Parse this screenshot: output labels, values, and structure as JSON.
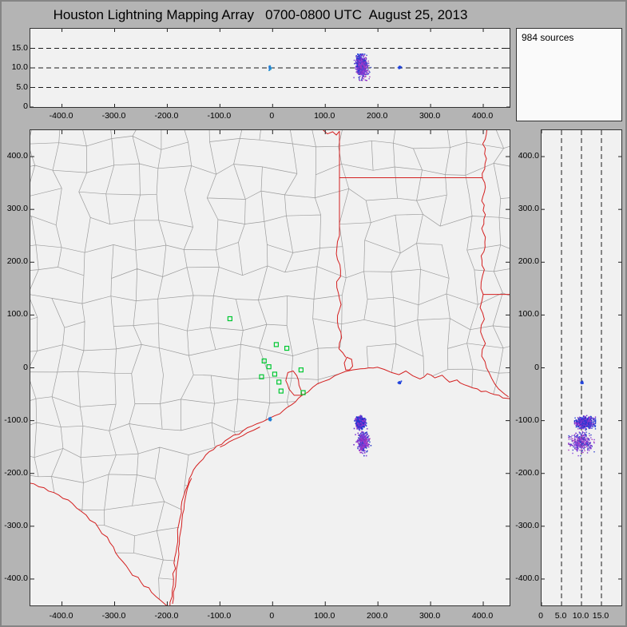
{
  "title": "Houston Lightning Mapping Array   0700-0800 UTC  August 25, 2013",
  "sources_label": "984 sources",
  "chart_data": {
    "type": "scatter",
    "title": "Houston Lightning Mapping Array   0700-0800 UTC  August 25, 2013",
    "total_sources": 984,
    "legend": "none",
    "grid": "dashed reference lines at 5, 10, 15 km altitude",
    "panels": {
      "top": {
        "x": "east-west distance km",
        "y": "altitude km",
        "x_range": [
          -460,
          450
        ],
        "y_range": [
          0,
          20
        ]
      },
      "map": {
        "x": "east-west distance km",
        "y": "north-south distance km",
        "x_range": [
          -460,
          450
        ],
        "y_range": [
          -450,
          450
        ]
      },
      "right": {
        "x": "altitude km",
        "y": "north-south distance km",
        "x_range": [
          0,
          20
        ],
        "y_range": [
          -450,
          450
        ]
      }
    },
    "axes": {
      "km_ticks": [
        {
          "v": -400,
          "label": "-400.0"
        },
        {
          "v": -300,
          "label": "-300.0"
        },
        {
          "v": -200,
          "label": "-200.0"
        },
        {
          "v": -100,
          "label": "-100.0"
        },
        {
          "v": 0,
          "label": "0"
        },
        {
          "v": 100,
          "label": "100.0"
        },
        {
          "v": 200,
          "label": "200.0"
        },
        {
          "v": 300,
          "label": "300.0"
        },
        {
          "v": 400,
          "label": "400.0"
        }
      ],
      "alt_ticks": [
        {
          "v": 0,
          "label": "0"
        },
        {
          "v": 5,
          "label": "5.0"
        },
        {
          "v": 10,
          "label": "10.0"
        },
        {
          "v": 15,
          "label": "15.0"
        }
      ],
      "dash_alts": [
        5,
        10,
        15
      ]
    },
    "clusters": [
      {
        "name": "flash-near-houston-coast",
        "count": 30,
        "cx": -5,
        "cy": -97,
        "sx": 1.5,
        "sy": 1.5,
        "zmin": 9.3,
        "zmax": 10.7,
        "colors": [
          "#22a0cc",
          "#2266dd"
        ]
      },
      {
        "name": "offshore-storm-main",
        "count": 600,
        "cx": 166,
        "cy": -104,
        "sx": 4,
        "sy": 5,
        "zmin": 8.3,
        "zmax": 13.5,
        "colors": [
          "#2233cc",
          "#2244dd",
          "#6633cc",
          "#9933cc"
        ]
      },
      {
        "name": "offshore-storm-south",
        "count": 330,
        "cx": 172,
        "cy": -141,
        "sx": 5,
        "sy": 9,
        "zmin": 6.8,
        "zmax": 13.2,
        "colors": [
          "#7733cc",
          "#aa33bb",
          "#3344cc",
          "#8844dd"
        ]
      },
      {
        "name": "small-flash-offshore-la",
        "count": 24,
        "cx": 241,
        "cy": -28,
        "sx": 1.5,
        "sy": 1.5,
        "zmin": 9.6,
        "zmax": 10.6,
        "colors": [
          "#2244dd"
        ]
      }
    ],
    "stations": {
      "color": "#00c832",
      "points": [
        [
          -81,
          93
        ],
        [
          7,
          44
        ],
        [
          27,
          37
        ],
        [
          -16,
          13
        ],
        [
          -7,
          2
        ],
        [
          -21,
          -17
        ],
        [
          4,
          -12
        ],
        [
          12,
          -27
        ],
        [
          54,
          -4
        ],
        [
          58,
          -47
        ],
        [
          16,
          -44
        ]
      ]
    },
    "map_features": {
      "coast": [
        [
          -195,
          -455
        ],
        [
          -188,
          -400
        ],
        [
          -182,
          -340
        ],
        [
          -176,
          -285
        ],
        [
          -169,
          -243
        ],
        [
          -158,
          -210
        ],
        [
          -145,
          -186
        ],
        [
          -127,
          -165
        ],
        [
          -106,
          -148
        ],
        [
          -82,
          -133
        ],
        [
          -56,
          -119
        ],
        [
          -30,
          -106
        ],
        [
          -7,
          -96
        ],
        [
          14,
          -87
        ],
        [
          36,
          -70
        ],
        [
          56,
          -52
        ],
        [
          76,
          -37
        ],
        [
          96,
          -26
        ],
        [
          118,
          -15
        ],
        [
          138,
          -7
        ],
        [
          152,
          -4
        ],
        [
          167,
          -2
        ],
        [
          183,
          0
        ],
        [
          199,
          1
        ],
        [
          212,
          -3
        ],
        [
          226,
          -9
        ],
        [
          240,
          -13
        ],
        [
          253,
          -6
        ],
        [
          266,
          -15
        ],
        [
          280,
          -21
        ],
        [
          294,
          -11
        ],
        [
          308,
          -19
        ],
        [
          322,
          -14
        ],
        [
          336,
          -27
        ],
        [
          350,
          -23
        ],
        [
          364,
          -32
        ],
        [
          380,
          -38
        ],
        [
          396,
          -45
        ],
        [
          413,
          -48
        ],
        [
          430,
          -52
        ],
        [
          446,
          -58
        ],
        [
          463,
          -60
        ]
      ],
      "rio_grande": [
        [
          -463,
          -218
        ],
        [
          -434,
          -227
        ],
        [
          -406,
          -241
        ],
        [
          -380,
          -257
        ],
        [
          -354,
          -279
        ],
        [
          -330,
          -304
        ],
        [
          -309,
          -331
        ],
        [
          -292,
          -359
        ],
        [
          -272,
          -384
        ],
        [
          -250,
          -406
        ],
        [
          -230,
          -425
        ],
        [
          -212,
          -441
        ],
        [
          -195,
          -455
        ]
      ],
      "barrier_island": [
        [
          -190,
          -447
        ],
        [
          -183,
          -392
        ],
        [
          -177,
          -333
        ],
        [
          -171,
          -278
        ],
        [
          -164,
          -238
        ],
        [
          -154,
          -209
        ]
      ],
      "matagorda_barrier": [
        [
          -100,
          -150
        ],
        [
          -74,
          -136
        ],
        [
          -48,
          -123
        ],
        [
          -24,
          -112
        ]
      ],
      "galveston_bay": [
        [
          56,
          -52
        ],
        [
          50,
          -33
        ],
        [
          46,
          -15
        ],
        [
          39,
          -6
        ],
        [
          29,
          -9
        ],
        [
          25,
          -24
        ],
        [
          31,
          -40
        ],
        [
          41,
          -52
        ]
      ],
      "sabine_lake": [
        [
          139,
          -4
        ],
        [
          136,
          9
        ],
        [
          141,
          20
        ],
        [
          150,
          16
        ],
        [
          152,
          3
        ],
        [
          146,
          -4
        ]
      ],
      "red_river_segment": [
        [
          94,
          452
        ],
        [
          104,
          443
        ],
        [
          114,
          447
        ],
        [
          121,
          441
        ],
        [
          127,
          448
        ]
      ],
      "tx_border_vertical": [
        [
          127,
          448
        ],
        [
          127,
          250
        ]
      ],
      "sabine_river": [
        [
          127,
          250
        ],
        [
          121,
          216
        ],
        [
          129,
          184
        ],
        [
          122,
          152
        ],
        [
          130,
          120
        ],
        [
          123,
          88
        ],
        [
          131,
          57
        ],
        [
          126,
          36
        ],
        [
          139,
          20
        ]
      ],
      "ar_la_border": [
        [
          127,
          360
        ],
        [
          399,
          360
        ]
      ],
      "mississippi_river": [
        [
          407,
          452
        ],
        [
          399,
          424
        ],
        [
          406,
          396
        ],
        [
          398,
          368
        ],
        [
          404,
          342
        ],
        [
          397,
          316
        ],
        [
          404,
          290
        ],
        [
          397,
          264
        ],
        [
          403,
          238
        ],
        [
          396,
          212
        ],
        [
          402,
          186
        ],
        [
          396,
          162
        ],
        [
          400,
          139
        ],
        [
          394,
          114
        ],
        [
          402,
          92
        ],
        [
          395,
          68
        ],
        [
          404,
          46
        ],
        [
          397,
          22
        ],
        [
          406,
          0
        ],
        [
          416,
          -20
        ],
        [
          429,
          -40
        ],
        [
          441,
          -50
        ],
        [
          448,
          -55
        ]
      ],
      "la_ms_border": [
        [
          399,
          139
        ],
        [
          463,
          139
        ]
      ]
    },
    "colors": {
      "background": "#f1f1f1",
      "frame": "#b4b4b4",
      "border_red": "#d42020",
      "county": "#9c9c9c",
      "station_green": "#00c832",
      "dash": "#1a1a1a"
    }
  }
}
